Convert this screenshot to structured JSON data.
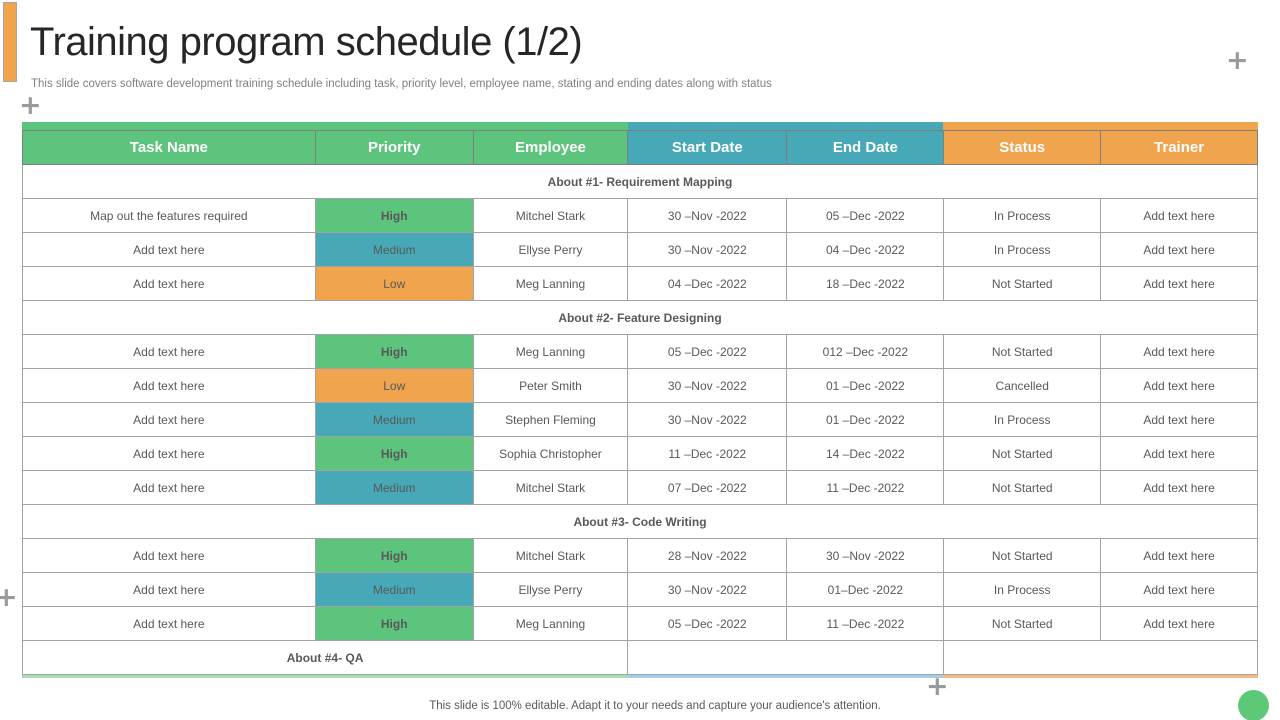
{
  "slide": {
    "title": "Training program schedule (1/2)",
    "subtitle": "This slide covers software development training schedule including task, priority level, employee name, stating and ending dates along with status",
    "footer": "This slide is 100% editable. Adapt it to your needs and capture your audience's attention."
  },
  "icons": {
    "plus": "+"
  },
  "colors": {
    "green": "#5CC47C",
    "teal": "#47A8B8",
    "orange": "#F0A44E",
    "light_green": "#A6E0B2",
    "light_blue": "#A3CDEA",
    "light_orange": "#F7BA7F",
    "accent_orange": "#F0A44E",
    "dot_green": "#5DC878"
  },
  "table": {
    "columns": [
      {
        "label": "Task Name",
        "group": "green"
      },
      {
        "label": "Priority",
        "group": "green"
      },
      {
        "label": "Employee",
        "group": "green"
      },
      {
        "label": "Start Date",
        "group": "teal"
      },
      {
        "label": "End Date",
        "group": "teal"
      },
      {
        "label": "Status",
        "group": "orange"
      },
      {
        "label": "Trainer",
        "group": "orange"
      }
    ],
    "priority_colors": {
      "High": "green",
      "Medium": "teal",
      "Low": "orange"
    },
    "sections": [
      {
        "title": "About #1- Requirement Mapping",
        "spans": [
          7
        ],
        "rows": [
          {
            "task": "Map out the features required",
            "priority": "High",
            "employee": "Mitchel Stark",
            "start": "30 –Nov -2022",
            "end": "05 –Dec -2022",
            "status": "In Process",
            "trainer": "Add text here"
          },
          {
            "task": "Add text here",
            "priority": "Medium",
            "employee": "Ellyse Perry",
            "start": "30 –Nov -2022",
            "end": "04 –Dec -2022",
            "status": "In Process",
            "trainer": "Add text here"
          },
          {
            "task": "Add text here",
            "priority": "Low",
            "employee": "Meg Lanning",
            "start": "04 –Dec -2022",
            "end": "18 –Dec -2022",
            "status": "Not Started",
            "trainer": "Add text here"
          }
        ]
      },
      {
        "title": "About #2- Feature Designing",
        "spans": [
          7
        ],
        "rows": [
          {
            "task": "Add text here",
            "priority": "High",
            "employee": "Meg Lanning",
            "start": "05 –Dec -2022",
            "end": "012 –Dec -2022",
            "status": "Not Started",
            "trainer": "Add text here"
          },
          {
            "task": "Add text here",
            "priority": "Low",
            "employee": "Peter Smith",
            "start": "30 –Nov -2022",
            "end": "01 –Dec -2022",
            "status": "Cancelled",
            "trainer": "Add text here"
          },
          {
            "task": "Add text here",
            "priority": "Medium",
            "employee": "Stephen Fleming",
            "start": "30 –Nov -2022",
            "end": "01 –Dec -2022",
            "status": "In Process",
            "trainer": "Add text here"
          },
          {
            "task": "Add text here",
            "priority": "High",
            "employee": "Sophia Christopher",
            "start": "11 –Dec -2022",
            "end": "14 –Dec -2022",
            "status": "Not Started",
            "trainer": "Add text here"
          },
          {
            "task": "Add text here",
            "priority": "Medium",
            "employee": "Mitchel Stark",
            "start": "07 –Dec -2022",
            "end": "11 –Dec -2022",
            "status": "Not Started",
            "trainer": "Add text here"
          }
        ]
      },
      {
        "title": "About #3- Code Writing",
        "spans": [
          7
        ],
        "rows": [
          {
            "task": "Add text here",
            "priority": "High",
            "employee": "Mitchel Stark",
            "start": "28 –Nov -2022",
            "end": "30 –Nov -2022",
            "status": "Not Started",
            "trainer": "Add text here"
          },
          {
            "task": "Add text here",
            "priority": "Medium",
            "employee": "Ellyse Perry",
            "start": "30 –Nov -2022",
            "end": "01–Dec -2022",
            "status": "In Process",
            "trainer": "Add text here"
          },
          {
            "task": "Add text here",
            "priority": "High",
            "employee": "Meg Lanning",
            "start": "05 –Dec -2022",
            "end": "11 –Dec -2022",
            "status": "Not Started",
            "trainer": "Add text here"
          }
        ]
      },
      {
        "title": "About #4- QA",
        "spans": [
          3,
          2,
          2
        ],
        "rows": []
      }
    ]
  }
}
